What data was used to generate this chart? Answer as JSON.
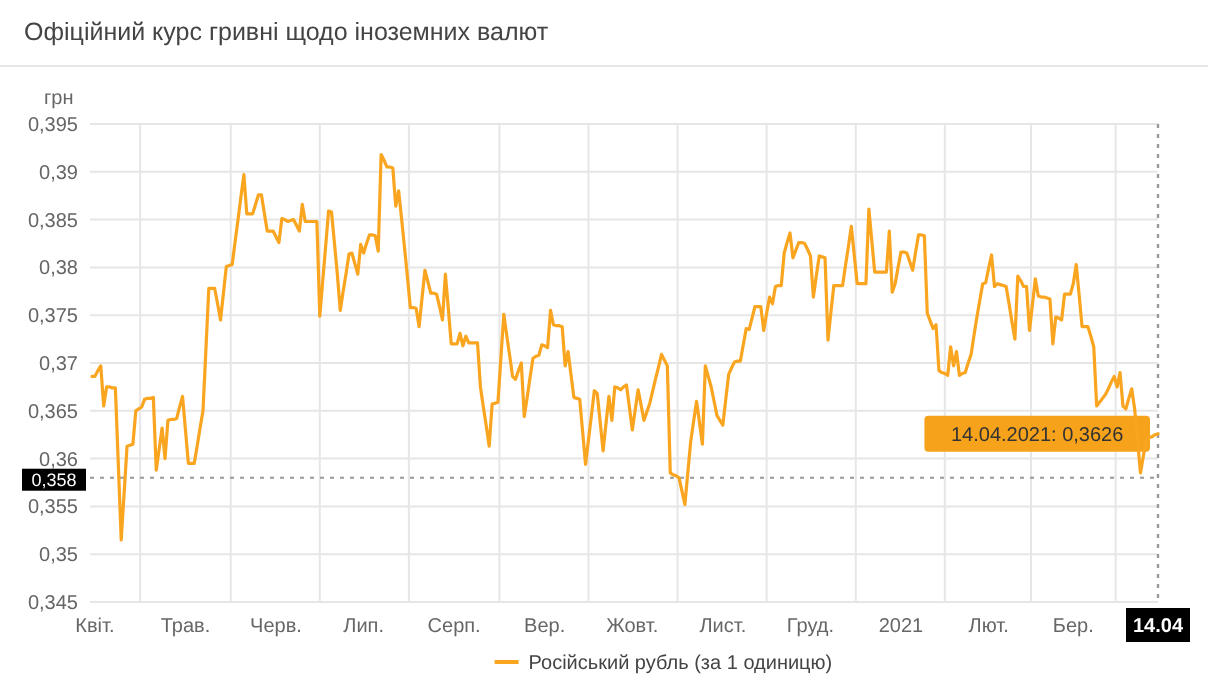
{
  "chart_data": {
    "type": "line",
    "title": "Офіційний курс гривні щодо іноземних валют",
    "ylabel": "грн",
    "categories": [
      null,
      "Квіт.",
      null,
      null,
      null,
      null,
      null,
      null,
      null,
      null,
      null,
      null,
      null,
      null,
      null,
      null,
      null,
      null,
      null,
      null,
      null,
      null,
      null,
      null,
      null,
      null,
      null,
      null,
      null,
      null,
      null,
      null,
      "Трав.",
      null,
      null,
      null,
      null,
      null,
      null,
      null,
      null,
      null,
      null,
      null,
      null,
      null,
      null,
      null,
      null,
      null,
      null,
      null,
      null,
      null,
      null,
      null,
      null,
      null,
      null,
      null,
      null,
      null,
      null,
      "Черв.",
      null,
      null,
      null,
      null,
      null,
      null,
      null,
      null,
      null,
      null,
      null,
      null,
      null,
      null,
      null,
      null,
      null,
      null,
      null,
      null,
      null,
      null,
      null,
      null,
      null,
      null,
      null,
      null,
      null,
      "Лип.",
      null,
      null,
      null,
      null,
      null,
      null,
      null,
      null,
      null,
      null,
      null,
      null,
      null,
      null,
      null,
      null,
      null,
      null,
      null,
      null,
      null,
      null,
      null,
      null,
      null,
      null,
      null,
      null,
      null,
      null,
      "Серп.",
      null,
      null,
      null,
      null,
      null,
      null,
      null,
      null,
      null,
      null,
      null,
      null,
      null,
      null,
      null,
      null,
      null,
      null,
      null,
      null,
      null,
      null,
      null,
      null,
      null,
      null,
      null,
      null,
      null,
      null,
      "Вер.",
      null,
      null,
      null,
      null,
      null,
      null,
      null,
      null,
      null,
      null,
      null,
      null,
      null,
      null,
      null,
      null,
      null,
      null,
      null,
      null,
      null,
      null,
      null,
      null,
      null,
      null,
      null,
      null,
      null,
      "Жовт.",
      null,
      null,
      null,
      null,
      null,
      null,
      null,
      null,
      null,
      null,
      null,
      null,
      null,
      null,
      null,
      null,
      null,
      null,
      null,
      null,
      null,
      null,
      null,
      null,
      null,
      null,
      null,
      null,
      null,
      null,
      "Лист.",
      null,
      null,
      null,
      null,
      null,
      null,
      null,
      null,
      null,
      null,
      null,
      null,
      null,
      null,
      null,
      null,
      null,
      null,
      null,
      null,
      null,
      null,
      null,
      null,
      null,
      null,
      null,
      null,
      null,
      "Груд.",
      null,
      null,
      null,
      null,
      null,
      null,
      null,
      null,
      null,
      null,
      null,
      null,
      null,
      null,
      null,
      null,
      null,
      null,
      null,
      null,
      null,
      null,
      null,
      null,
      null,
      null,
      null,
      null,
      null,
      null,
      "2021",
      null,
      null,
      null,
      null,
      null,
      null,
      null,
      null,
      null,
      null,
      null,
      null,
      null,
      null,
      null,
      null,
      null,
      null,
      null,
      null,
      null,
      null,
      null,
      null,
      null,
      null,
      null,
      null,
      null,
      "Лют.",
      null,
      null,
      null,
      null,
      null,
      null,
      null,
      null,
      null,
      null,
      null,
      null,
      null,
      null,
      null,
      null,
      null,
      null,
      null,
      null,
      null,
      null,
      null,
      null,
      null,
      null,
      null,
      null,
      "Бер.",
      null,
      null,
      null,
      null,
      null,
      null,
      null,
      null,
      null,
      null,
      null,
      null,
      null,
      null,
      null,
      null,
      null,
      null,
      null,
      null,
      null,
      null,
      null,
      null,
      null,
      null,
      null,
      null,
      "14.04"
    ],
    "ylim": [
      0.345,
      0.395
    ],
    "yticks": [
      {
        "value": 0.345,
        "label": "0,345"
      },
      {
        "value": 0.35,
        "label": "0,35"
      },
      {
        "value": 0.355,
        "label": "0,355"
      },
      {
        "value": 0.36,
        "label": "0,36"
      },
      {
        "value": 0.365,
        "label": "0,365"
      },
      {
        "value": 0.37,
        "label": "0,37"
      },
      {
        "value": 0.375,
        "label": "0,375"
      },
      {
        "value": 0.38,
        "label": "0,38"
      },
      {
        "value": 0.385,
        "label": "0,385"
      },
      {
        "value": 0.39,
        "label": "0,39"
      },
      {
        "value": 0.395,
        "label": "0,395"
      }
    ],
    "grid": true,
    "legend": "bottom",
    "marker": "none",
    "line_style": "solid",
    "ref_lines": [
      {
        "axis": "y",
        "value": 0.358,
        "label": "0,358",
        "color": "#999999",
        "line_style": "dotted"
      },
      {
        "axis": "x",
        "value": "14.04",
        "color": "#999999",
        "line_style": "dotted"
      }
    ],
    "annotations": [
      {
        "text": "14.04.2021: 0,3626",
        "x": "14.04",
        "y": 0.3626
      }
    ],
    "series": [
      {
        "name": "Російський рубль (за 1 одиницю)",
        "color": "#f9a520",
        "values": [
          0.3686,
          0.3686,
          0.3692,
          0.3697,
          0.3655,
          0.3675,
          0.3675,
          0.3674,
          0.3674,
          0.3595,
          0.3515,
          0.3564,
          0.3613,
          0.3614,
          0.3615,
          0.365,
          0.3652,
          0.3654,
          0.3662,
          0.3663,
          0.3663,
          0.3664,
          0.3588,
          0.361,
          0.3632,
          0.36,
          0.364,
          0.3641,
          0.3641,
          0.3642,
          0.3654,
          0.3665,
          0.363,
          0.3595,
          0.3595,
          0.3595,
          0.3613,
          0.3632,
          0.365,
          0.3714,
          0.3778,
          0.3778,
          0.3778,
          0.3762,
          0.3745,
          0.3773,
          0.3801,
          0.3802,
          0.3803,
          0.3827,
          0.385,
          0.3874,
          0.3897,
          0.3856,
          0.3856,
          0.3856,
          0.3866,
          0.3876,
          0.3876,
          0.3857,
          0.3838,
          0.3838,
          0.3838,
          0.3832,
          0.3826,
          0.3851,
          0.385,
          0.3848,
          0.3849,
          0.385,
          0.3844,
          0.3838,
          0.3866,
          0.3848,
          0.3848,
          0.3848,
          0.3848,
          0.3848,
          0.3749,
          0.3786,
          0.3822,
          0.3859,
          0.3858,
          0.3826,
          0.3793,
          0.3755,
          0.3775,
          0.3794,
          0.3814,
          0.3815,
          0.3804,
          0.3793,
          0.3824,
          0.3815,
          0.3825,
          0.3834,
          0.3834,
          0.3833,
          0.3817,
          0.3918,
          0.3912,
          0.3905,
          0.3905,
          0.3904,
          0.3864,
          0.388,
          0.3851,
          0.3821,
          0.379,
          0.3758,
          0.3758,
          0.3757,
          0.3738,
          0.3768,
          0.3797,
          0.3785,
          0.3773,
          0.3773,
          0.3772,
          0.3759,
          0.3745,
          0.3793,
          0.3757,
          0.372,
          0.372,
          0.372,
          0.3731,
          0.3718,
          0.3728,
          0.3721,
          0.3721,
          0.3721,
          0.3721,
          0.3675,
          0.3654,
          0.3634,
          0.3613,
          0.3657,
          0.3658,
          0.3659,
          0.3705,
          0.3751,
          0.3729,
          0.3708,
          0.3686,
          0.3683,
          0.3692,
          0.37,
          0.3644,
          0.3664,
          0.3685,
          0.3705,
          0.3707,
          0.3708,
          0.3719,
          0.3718,
          0.3716,
          0.3755,
          0.374,
          0.3739,
          0.3739,
          0.3738,
          0.3697,
          0.3712,
          0.3688,
          0.3664,
          0.3663,
          0.3662,
          0.3628,
          0.3594,
          0.362,
          0.3645,
          0.3671,
          0.3668,
          0.3638,
          0.3608,
          0.3637,
          0.3665,
          0.364,
          0.3675,
          0.3674,
          0.3672,
          0.3675,
          0.3677,
          0.3654,
          0.363,
          0.3651,
          0.3672,
          0.3656,
          0.364,
          0.3649,
          0.3658,
          0.3671,
          0.3684,
          0.3696,
          0.3709,
          0.3703,
          0.3697,
          0.3585,
          0.3583,
          0.3582,
          0.358,
          0.3566,
          0.3552,
          0.3585,
          0.3618,
          0.3639,
          0.366,
          0.3638,
          0.3615,
          0.3697,
          0.3686,
          0.3675,
          0.366,
          0.3645,
          0.364,
          0.3635,
          0.3662,
          0.3688,
          0.3695,
          0.3701,
          0.3702,
          0.3702,
          0.3719,
          0.3736,
          0.3735,
          0.3747,
          0.3759,
          0.3759,
          0.3759,
          0.3734,
          0.3752,
          0.3769,
          0.3762,
          0.378,
          0.3781,
          0.3781,
          0.3815,
          0.3826,
          0.3836,
          0.381,
          0.3818,
          0.3826,
          0.3826,
          0.3825,
          0.3819,
          0.3812,
          0.3769,
          0.3791,
          0.3812,
          0.3811,
          0.381,
          0.3724,
          0.3753,
          0.3781,
          0.3781,
          0.3781,
          0.3781,
          0.3802,
          0.3822,
          0.3843,
          0.3813,
          0.3783,
          0.3783,
          0.3783,
          0.3783,
          0.3861,
          0.3828,
          0.3795,
          0.3795,
          0.3795,
          0.3795,
          0.3795,
          0.3838,
          0.3774,
          0.3783,
          0.38,
          0.3816,
          0.3816,
          0.3815,
          0.3806,
          0.3797,
          0.3816,
          0.3834,
          0.3834,
          0.3833,
          0.3752,
          0.3744,
          0.3736,
          0.374,
          0.3692,
          0.369,
          0.3689,
          0.3687,
          0.3717,
          0.3697,
          0.3712,
          0.3687,
          0.3689,
          0.369,
          0.37,
          0.3709,
          0.3729,
          0.3748,
          0.3766,
          0.3783,
          0.3784,
          0.3799,
          0.3813,
          0.378,
          0.3783,
          0.3782,
          0.3781,
          0.378,
          0.3762,
          0.3743,
          0.3725,
          0.3791,
          0.3786,
          0.378,
          0.378,
          0.3734,
          0.3761,
          0.3788,
          0.377,
          0.3769,
          0.3769,
          0.3768,
          0.3767,
          0.372,
          0.3748,
          0.3747,
          0.3745,
          0.3772,
          0.3772,
          0.3772,
          0.3783,
          0.3803,
          0.3771,
          0.3738,
          0.3738,
          0.3738,
          0.3728,
          0.3717,
          0.3655,
          0.3659,
          0.3663,
          0.3667,
          0.3673,
          0.368,
          0.3686,
          0.3675,
          0.369,
          0.3655,
          0.3652,
          0.3663,
          0.3673,
          0.3652,
          0.3619,
          0.3585,
          0.3603,
          0.362,
          0.3622,
          0.3623,
          0.3625,
          0.3626
        ]
      }
    ]
  }
}
